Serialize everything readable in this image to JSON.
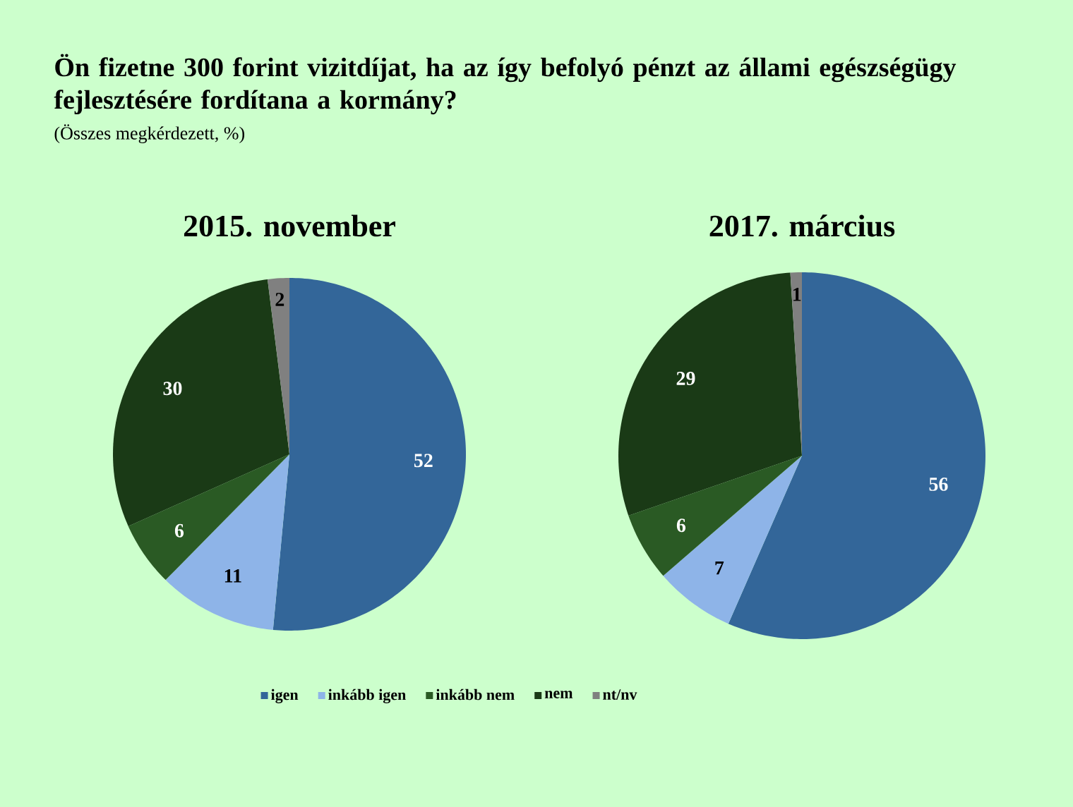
{
  "chart_data": [
    {
      "type": "pie",
      "title": "2015. november",
      "annotations": [
        "Ön fizetne 300 forint vizitdíjat, ha az így befolyó pénzt az állami egészségügy fejlesztésére fordítana a kormány?",
        "(Összes megkérdezett, %)"
      ],
      "categories": [
        "igen",
        "inkább igen",
        "inkább nem",
        "nem",
        "nt/nv"
      ],
      "values": [
        52,
        11,
        6,
        30,
        2
      ],
      "colors": [
        "#336699",
        "#8eb4e8",
        "#2a5a24",
        "#1a3a16",
        "#808080"
      ],
      "data_labels": true,
      "legend": "bottom"
    },
    {
      "type": "pie",
      "title": "2017. március",
      "categories": [
        null,
        null,
        null,
        null,
        null
      ],
      "values": [
        56,
        7,
        6,
        29,
        1
      ],
      "colors": [
        "#336699",
        "#8eb4e8",
        "#2a5a24",
        "#1a3a16",
        "#808080"
      ],
      "data_labels": true
    }
  ]
}
